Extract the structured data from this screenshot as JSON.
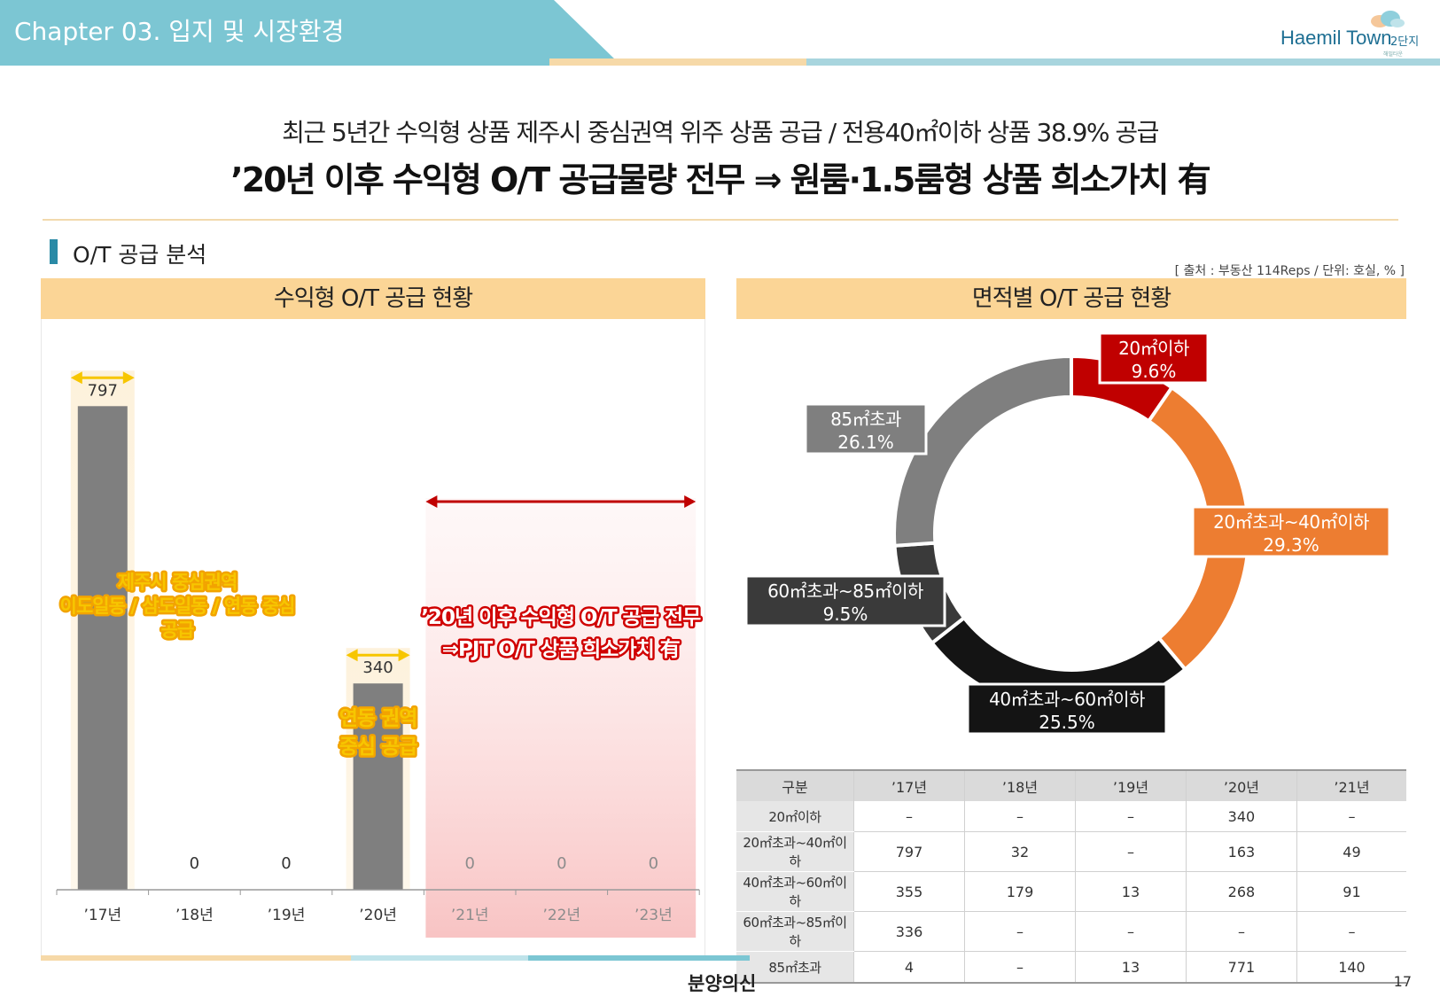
{
  "header": {
    "chapter_title": "Chapter 03. 입지 및 시장환경",
    "brand_name": "Haemil Town",
    "brand_sub": "2단지",
    "brand_tag": "해밀타운"
  },
  "headline": {
    "line1": "최근 5년간 수익형 상품 제주시 중심권역 위주 상품 공급 / 전용40㎡이하 상품 38.9% 공급",
    "line2": "’20년 이후 수익형 O/T 공급물량 전무 ⇒ 원룸·1.5룸형 상품 희소가치 有"
  },
  "section": {
    "title": "O/T 공급 분석",
    "source": "[ 출처 : 부동산 114Reps  / 단위: 호실, % ]"
  },
  "left_panel": {
    "title": "수익형 O/T 공급 현황",
    "annotation_1": [
      "제주시 중심권역",
      "이도일동 / 삼도일동 / 연동 중심",
      "공급"
    ],
    "annotation_2": [
      "연동 권역",
      "중심 공급"
    ],
    "annotation_3": [
      "’20년 이후 수익형 O/T 공급 전무",
      "⇒PJT O/T 상품 희소가치 有"
    ]
  },
  "right_panel": {
    "title": "면적별 O/T 공급 현황"
  },
  "chart_data": [
    {
      "type": "bar",
      "title": "수익형 O/T 공급 현황",
      "categories": [
        "’17년",
        "’18년",
        "’19년",
        "’20년",
        "’21년",
        "’22년",
        "’23년"
      ],
      "values": [
        797,
        0,
        0,
        340,
        0,
        0,
        0
      ],
      "ylim": [
        0,
        850
      ],
      "bar_color": "#7f7f7f",
      "highlight_color": "#f7c600",
      "no_supply_color": "#c00000"
    },
    {
      "type": "pie",
      "title": "면적별 O/T 공급 현황",
      "donut": true,
      "slices": [
        {
          "label": "20㎡이하",
          "value": 9.6,
          "display": "9.6%",
          "color": "#c00000"
        },
        {
          "label": "20㎡초과~40㎡이하",
          "value": 29.3,
          "display": "29.3%",
          "color": "#ed7d31"
        },
        {
          "label": "40㎡초과~60㎡이하",
          "value": 25.5,
          "display": "25.5%",
          "color": "#141414"
        },
        {
          "label": "60㎡초과~85㎡이하",
          "value": 9.5,
          "display": "9.5%",
          "color": "#3a3a3a"
        },
        {
          "label": "85㎡초과",
          "value": 26.1,
          "display": "26.1%",
          "color": "#7f7f7f"
        }
      ]
    },
    {
      "type": "table",
      "headers": [
        "구분",
        "’17년",
        "’18년",
        "’19년",
        "’20년",
        "’21년"
      ],
      "rows": [
        [
          "20㎡이하",
          "–",
          "–",
          "–",
          "340",
          "–"
        ],
        [
          "20㎡초과~40㎡이하",
          "797",
          "32",
          "–",
          "163",
          "49"
        ],
        [
          "40㎡초과~60㎡이하",
          "355",
          "179",
          "13",
          "268",
          "91"
        ],
        [
          "60㎡초과~85㎡이하",
          "336",
          "–",
          "–",
          "–",
          "–"
        ],
        [
          "85㎡초과",
          "4",
          "–",
          "13",
          "771",
          "140"
        ]
      ]
    }
  ],
  "footer": {
    "logo": "분양의신",
    "page": "17"
  }
}
